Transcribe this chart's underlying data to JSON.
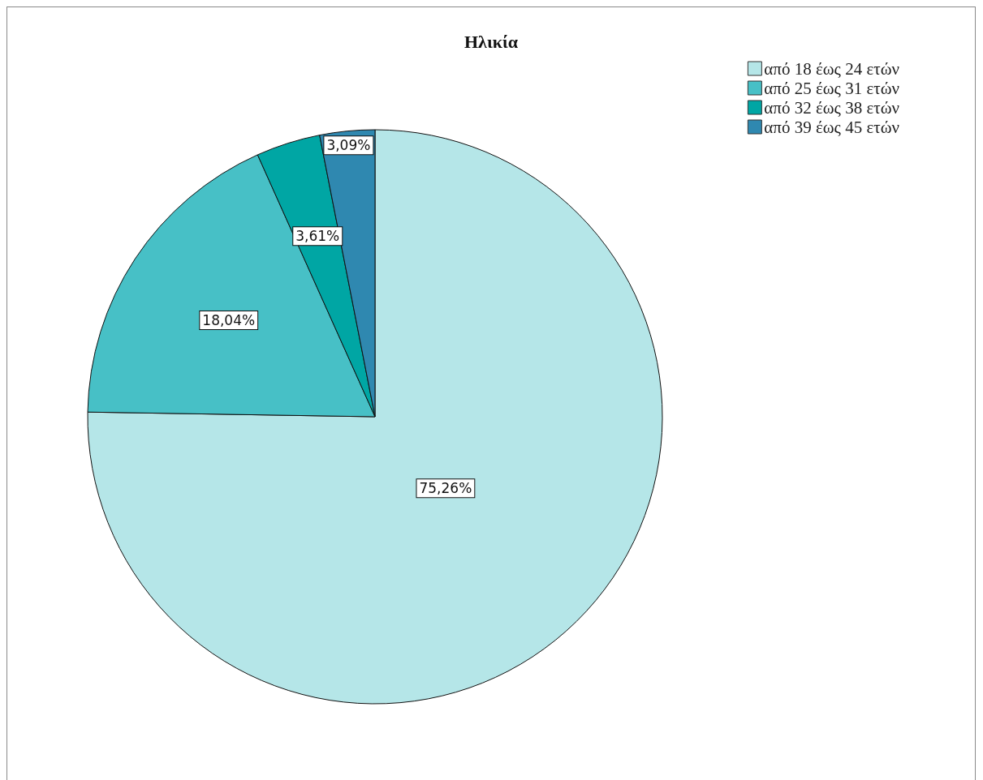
{
  "chart_data": {
    "type": "pie",
    "title": "Ηλικία",
    "categories": [
      "από 18 έως 24 ετών",
      "από 25 έως 31 ετών",
      "από 32 έως 38 ετών",
      "από 39 έως 45 ετών"
    ],
    "values": [
      75.26,
      18.04,
      3.61,
      3.09
    ],
    "colors": [
      "#b5e6e8",
      "#47c0c6",
      "#00a6a4",
      "#2f88b0"
    ],
    "value_labels": [
      "75,26%",
      "18,04%",
      "3,61%",
      "3,09%"
    ],
    "legend": "top right"
  }
}
